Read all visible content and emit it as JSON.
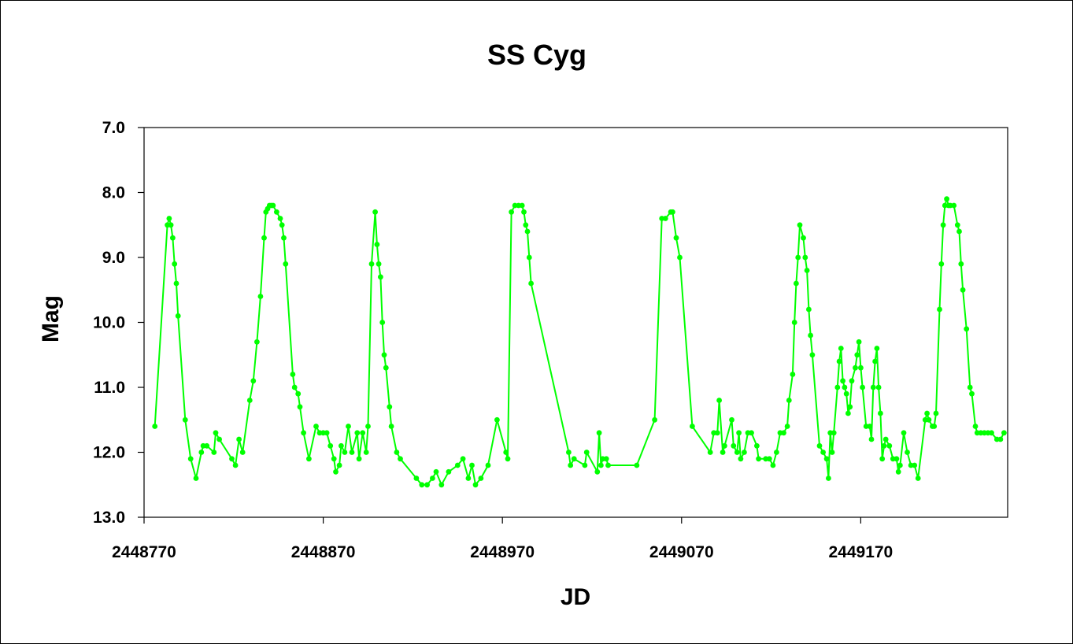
{
  "chart_data": {
    "type": "line",
    "title": "SS Cyg",
    "xlabel": "JD",
    "ylabel": "Mag",
    "xlim": [
      2448770,
      2449252
    ],
    "ylim": [
      7.0,
      13.0
    ],
    "y_inverted": true,
    "grid": false,
    "legend": "none",
    "x_ticks": [
      "2448770",
      "2448870",
      "2448970",
      "2449070",
      "2449170"
    ],
    "y_ticks": [
      "7.0",
      "8.0",
      "9.0",
      "10.0",
      "11.0",
      "12.0",
      "13.0"
    ],
    "series": [
      {
        "color": "#00ff00",
        "marker": "circle",
        "points": [
          [
            2448776,
            11.6
          ],
          [
            2448783,
            8.5
          ],
          [
            2448784,
            8.4
          ],
          [
            2448785,
            8.5
          ],
          [
            2448786,
            8.7
          ],
          [
            2448787,
            9.1
          ],
          [
            2448788,
            9.4
          ],
          [
            2448789,
            9.9
          ],
          [
            2448793,
            11.5
          ],
          [
            2448796,
            12.1
          ],
          [
            2448799,
            12.4
          ],
          [
            2448802,
            12.0
          ],
          [
            2448803,
            11.9
          ],
          [
            2448805,
            11.9
          ],
          [
            2448809,
            12.0
          ],
          [
            2448810,
            11.7
          ],
          [
            2448812,
            11.8
          ],
          [
            2448819,
            12.1
          ],
          [
            2448821,
            12.2
          ],
          [
            2448823,
            11.8
          ],
          [
            2448825,
            12.0
          ],
          [
            2448829,
            11.2
          ],
          [
            2448831,
            10.9
          ],
          [
            2448833,
            10.3
          ],
          [
            2448835,
            9.6
          ],
          [
            2448837,
            8.7
          ],
          [
            2448838,
            8.3
          ],
          [
            2448839,
            8.25
          ],
          [
            2448840,
            8.2
          ],
          [
            2448841,
            8.2
          ],
          [
            2448842,
            8.2
          ],
          [
            2448844,
            8.3
          ],
          [
            2448846,
            8.4
          ],
          [
            2448847,
            8.5
          ],
          [
            2448848,
            8.7
          ],
          [
            2448849,
            9.1
          ],
          [
            2448853,
            10.8
          ],
          [
            2448854,
            11.0
          ],
          [
            2448856,
            11.1
          ],
          [
            2448857,
            11.3
          ],
          [
            2448859,
            11.7
          ],
          [
            2448862,
            12.1
          ],
          [
            2448866,
            11.6
          ],
          [
            2448868,
            11.7
          ],
          [
            2448870,
            11.7
          ],
          [
            2448872,
            11.7
          ],
          [
            2448874,
            11.9
          ],
          [
            2448876,
            12.1
          ],
          [
            2448877,
            12.3
          ],
          [
            2448879,
            12.2
          ],
          [
            2448880,
            11.9
          ],
          [
            2448882,
            12.0
          ],
          [
            2448884,
            11.6
          ],
          [
            2448886,
            12.0
          ],
          [
            2448889,
            11.7
          ],
          [
            2448890,
            12.1
          ],
          [
            2448892,
            11.7
          ],
          [
            2448894,
            12.0
          ],
          [
            2448895,
            11.6
          ],
          [
            2448897,
            9.1
          ],
          [
            2448899,
            8.3
          ],
          [
            2448900,
            8.8
          ],
          [
            2448901,
            9.1
          ],
          [
            2448902,
            9.3
          ],
          [
            2448903,
            10.0
          ],
          [
            2448904,
            10.5
          ],
          [
            2448905,
            10.7
          ],
          [
            2448907,
            11.3
          ],
          [
            2448908,
            11.6
          ],
          [
            2448911,
            12.0
          ],
          [
            2448913,
            12.1
          ],
          [
            2448922,
            12.4
          ],
          [
            2448925,
            12.5
          ],
          [
            2448928,
            12.5
          ],
          [
            2448931,
            12.4
          ],
          [
            2448933,
            12.3
          ],
          [
            2448936,
            12.5
          ],
          [
            2448940,
            12.3
          ],
          [
            2448945,
            12.2
          ],
          [
            2448948,
            12.1
          ],
          [
            2448951,
            12.4
          ],
          [
            2448953,
            12.2
          ],
          [
            2448955,
            12.5
          ],
          [
            2448958,
            12.4
          ],
          [
            2448962,
            12.2
          ],
          [
            2448967,
            11.5
          ],
          [
            2448972,
            12.0
          ],
          [
            2448973,
            12.1
          ],
          [
            2448975,
            8.3
          ],
          [
            2448977,
            8.2
          ],
          [
            2448979,
            8.2
          ],
          [
            2448981,
            8.2
          ],
          [
            2448982,
            8.3
          ],
          [
            2448983,
            8.5
          ],
          [
            2448984,
            8.6
          ],
          [
            2448985,
            9.0
          ],
          [
            2448986,
            9.4
          ],
          [
            2449007,
            12.0
          ],
          [
            2449008,
            12.2
          ],
          [
            2449010,
            12.1
          ],
          [
            2449016,
            12.2
          ],
          [
            2449017,
            12.0
          ],
          [
            2449023,
            12.3
          ],
          [
            2449024,
            11.7
          ],
          [
            2449025,
            12.2
          ],
          [
            2449026,
            12.1
          ],
          [
            2449028,
            12.1
          ],
          [
            2449029,
            12.2
          ],
          [
            2449045,
            12.2
          ],
          [
            2449055,
            11.5
          ],
          [
            2449059,
            8.4
          ],
          [
            2449061,
            8.4
          ],
          [
            2449064,
            8.3
          ],
          [
            2449065,
            8.3
          ],
          [
            2449067,
            8.7
          ],
          [
            2449069,
            9.0
          ],
          [
            2449076,
            11.6
          ],
          [
            2449086,
            12.0
          ],
          [
            2449088,
            11.7
          ],
          [
            2449090,
            11.7
          ],
          [
            2449091,
            11.2
          ],
          [
            2449093,
            12.0
          ],
          [
            2449094,
            11.9
          ],
          [
            2449098,
            11.5
          ],
          [
            2449099,
            11.9
          ],
          [
            2449101,
            12.0
          ],
          [
            2449102,
            11.7
          ],
          [
            2449103,
            12.1
          ],
          [
            2449105,
            12.0
          ],
          [
            2449107,
            11.7
          ],
          [
            2449109,
            11.7
          ],
          [
            2449112,
            11.9
          ],
          [
            2449113,
            12.1
          ],
          [
            2449117,
            12.1
          ],
          [
            2449119,
            12.1
          ],
          [
            2449121,
            12.2
          ],
          [
            2449123,
            12.0
          ],
          [
            2449125,
            11.7
          ],
          [
            2449127,
            11.7
          ],
          [
            2449129,
            11.6
          ],
          [
            2449130,
            11.2
          ],
          [
            2449132,
            10.8
          ],
          [
            2449133,
            10.0
          ],
          [
            2449134,
            9.4
          ],
          [
            2449135,
            9.0
          ],
          [
            2449136,
            8.5
          ],
          [
            2449138,
            8.7
          ],
          [
            2449139,
            9.0
          ],
          [
            2449140,
            9.2
          ],
          [
            2449141,
            9.8
          ],
          [
            2449142,
            10.2
          ],
          [
            2449143,
            10.5
          ],
          [
            2449147,
            11.9
          ],
          [
            2449149,
            12.0
          ],
          [
            2449151,
            12.1
          ],
          [
            2449152,
            12.4
          ],
          [
            2449153,
            11.7
          ],
          [
            2449154,
            12.0
          ],
          [
            2449155,
            11.7
          ],
          [
            2449157,
            11.0
          ],
          [
            2449158,
            10.6
          ],
          [
            2449159,
            10.4
          ],
          [
            2449160,
            10.9
          ],
          [
            2449161,
            11.0
          ],
          [
            2449162,
            11.1
          ],
          [
            2449163,
            11.4
          ],
          [
            2449164,
            11.3
          ],
          [
            2449165,
            10.9
          ],
          [
            2449167,
            10.7
          ],
          [
            2449168,
            10.5
          ],
          [
            2449169,
            10.3
          ],
          [
            2449170,
            10.7
          ],
          [
            2449171,
            11.0
          ],
          [
            2449173,
            11.6
          ],
          [
            2449175,
            11.6
          ],
          [
            2449176,
            11.8
          ],
          [
            2449177,
            11.0
          ],
          [
            2449178,
            10.6
          ],
          [
            2449179,
            10.4
          ],
          [
            2449180,
            11.0
          ],
          [
            2449181,
            11.4
          ],
          [
            2449182,
            12.1
          ],
          [
            2449183,
            11.9
          ],
          [
            2449184,
            11.8
          ],
          [
            2449186,
            11.9
          ],
          [
            2449188,
            12.1
          ],
          [
            2449190,
            12.1
          ],
          [
            2449191,
            12.3
          ],
          [
            2449192,
            12.2
          ],
          [
            2449194,
            11.7
          ],
          [
            2449196,
            12.0
          ],
          [
            2449198,
            12.2
          ],
          [
            2449200,
            12.2
          ],
          [
            2449202,
            12.4
          ],
          [
            2449206,
            11.5
          ],
          [
            2449207,
            11.4
          ],
          [
            2449208,
            11.5
          ],
          [
            2449210,
            11.6
          ],
          [
            2449211,
            11.6
          ],
          [
            2449212,
            11.4
          ],
          [
            2449214,
            9.8
          ],
          [
            2449215,
            9.1
          ],
          [
            2449216,
            8.5
          ],
          [
            2449217,
            8.2
          ],
          [
            2449218,
            8.1
          ],
          [
            2449219,
            8.2
          ],
          [
            2449220,
            8.2
          ],
          [
            2449222,
            8.2
          ],
          [
            2449224,
            8.5
          ],
          [
            2449225,
            8.6
          ],
          [
            2449226,
            9.1
          ],
          [
            2449227,
            9.5
          ],
          [
            2449229,
            10.1
          ],
          [
            2449231,
            11.0
          ],
          [
            2449232,
            11.1
          ],
          [
            2449234,
            11.6
          ],
          [
            2449235,
            11.7
          ],
          [
            2449237,
            11.7
          ],
          [
            2449239,
            11.7
          ],
          [
            2449241,
            11.7
          ],
          [
            2449243,
            11.7
          ],
          [
            2449246,
            11.8
          ],
          [
            2449248,
            11.8
          ],
          [
            2449250,
            11.7
          ]
        ]
      }
    ]
  }
}
